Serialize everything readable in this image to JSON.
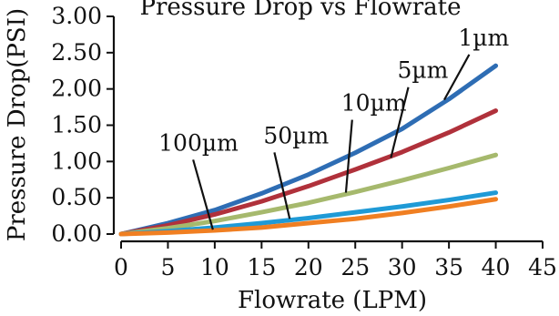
{
  "chart_data": {
    "type": "line",
    "title": "Pressure Drop vs Flowrate",
    "xlabel": "Flowrate (LPM)",
    "ylabel": "Pressure Drop(PSI)",
    "xlim": [
      0,
      45
    ],
    "ylim": [
      0,
      3.0
    ],
    "x_ticks": [
      "0",
      "5",
      "10",
      "15",
      "20",
      "25",
      "30",
      "35",
      "40",
      "45"
    ],
    "y_ticks": [
      "0.00",
      "0.50",
      "1.00",
      "1.50",
      "2.00",
      "2.50",
      "3.00"
    ],
    "grid": false,
    "legend": "none",
    "series": [
      {
        "name": "1µm",
        "color": "#2e6db4",
        "x": [
          0,
          5,
          10,
          15,
          20,
          25,
          30,
          35,
          40
        ],
        "y": [
          0,
          0.15,
          0.33,
          0.56,
          0.82,
          1.12,
          1.45,
          1.86,
          2.32
        ]
      },
      {
        "name": "5µm",
        "color": "#b0313b",
        "x": [
          0,
          5,
          10,
          15,
          20,
          25,
          30,
          35,
          40
        ],
        "y": [
          0,
          0.12,
          0.27,
          0.45,
          0.66,
          0.89,
          1.13,
          1.4,
          1.7
        ]
      },
      {
        "name": "10µm",
        "color": "#a6b96d",
        "x": [
          0,
          5,
          10,
          15,
          20,
          25,
          30,
          35,
          40
        ],
        "y": [
          0,
          0.08,
          0.18,
          0.3,
          0.43,
          0.58,
          0.74,
          0.91,
          1.09
        ]
      },
      {
        "name": "50µm",
        "color": "#1f9ad6",
        "x": [
          0,
          5,
          10,
          15,
          20,
          25,
          30,
          35,
          40
        ],
        "y": [
          0,
          0.04,
          0.09,
          0.15,
          0.22,
          0.3,
          0.38,
          0.47,
          0.57
        ]
      },
      {
        "name": "100µm",
        "color": "#f07f22",
        "x": [
          0,
          5,
          10,
          15,
          20,
          25,
          30,
          35,
          40
        ],
        "y": [
          0,
          0.02,
          0.05,
          0.09,
          0.15,
          0.21,
          0.29,
          0.38,
          0.48
        ]
      }
    ],
    "annotations": [
      {
        "text": "1µm",
        "x": 36.0,
        "y": 2.6,
        "arrow_x": 34.5,
        "arrow_y": 1.85
      },
      {
        "text": "5µm",
        "x": 29.5,
        "y": 2.15,
        "arrow_x": 28.8,
        "arrow_y": 1.05
      },
      {
        "text": "10µm",
        "x": 23.5,
        "y": 1.7,
        "arrow_x": 24.0,
        "arrow_y": 0.57
      },
      {
        "text": "50µm",
        "x": 15.2,
        "y": 1.25,
        "arrow_x": 18.0,
        "arrow_y": 0.21
      },
      {
        "text": "100µm",
        "x": 4.0,
        "y": 1.15,
        "arrow_x": 9.8,
        "arrow_y": 0.06
      }
    ]
  }
}
